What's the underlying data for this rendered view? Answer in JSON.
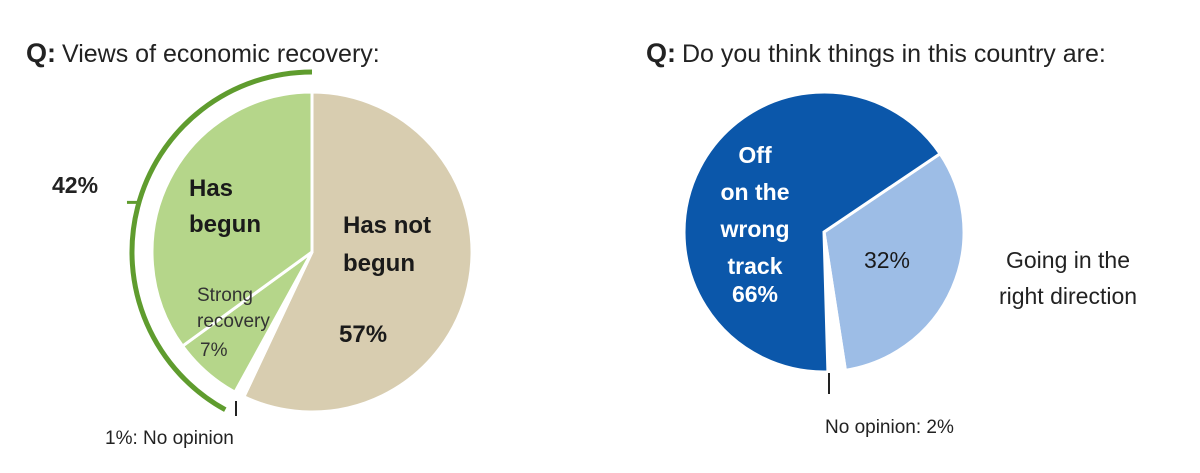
{
  "charts_section": {
    "left": {
      "question_prefix": "Q:",
      "question_text": "Views of economic recovery:",
      "bracket_label": "42%",
      "no_opinion_note": "1%: No opinion"
    },
    "right": {
      "question_prefix": "Q:",
      "question_text": "Do you think things in this country are:",
      "no_opinion_note": "No opinion: 2%"
    }
  },
  "chart_data": [
    {
      "type": "pie",
      "title": "Views of economic recovery:",
      "slices": [
        {
          "key": "has_not_begun",
          "label_lines": [
            "Has not",
            "begun"
          ],
          "value_label": "57%",
          "value": 57,
          "color": "#d8cdb0"
        },
        {
          "key": "no_opinion",
          "label_lines": [],
          "value_label": "1%",
          "value": 1,
          "color": "#ffffff"
        },
        {
          "key": "strong_recovery",
          "label_lines": [
            "Strong",
            "recovery"
          ],
          "value_label": "7%",
          "value": 7,
          "color": "#b5d68a"
        },
        {
          "key": "has_begun",
          "label_lines": [
            "Has",
            "begun"
          ],
          "value_label": "",
          "value": 35,
          "color": "#b5d68a"
        }
      ],
      "group": {
        "label": "42%",
        "value": 42,
        "color": "#5f9c2e"
      }
    },
    {
      "type": "pie",
      "title": "Do you think things in this country are:",
      "slices": [
        {
          "key": "right_direction",
          "label_lines": [
            "32%"
          ],
          "value_label": "32%",
          "value": 32,
          "color": "#9dbde6"
        },
        {
          "key": "no_opinion",
          "label_lines": [],
          "value_label": "2%",
          "value": 2,
          "color": "#ffffff"
        },
        {
          "key": "wrong_track",
          "label_lines": [
            "Off",
            "on the",
            "wrong",
            "track"
          ],
          "value_label": "66%",
          "value": 66,
          "color": "#0b57aa"
        }
      ],
      "outside_label_lines": [
        "Going in the",
        "right direction"
      ]
    }
  ]
}
